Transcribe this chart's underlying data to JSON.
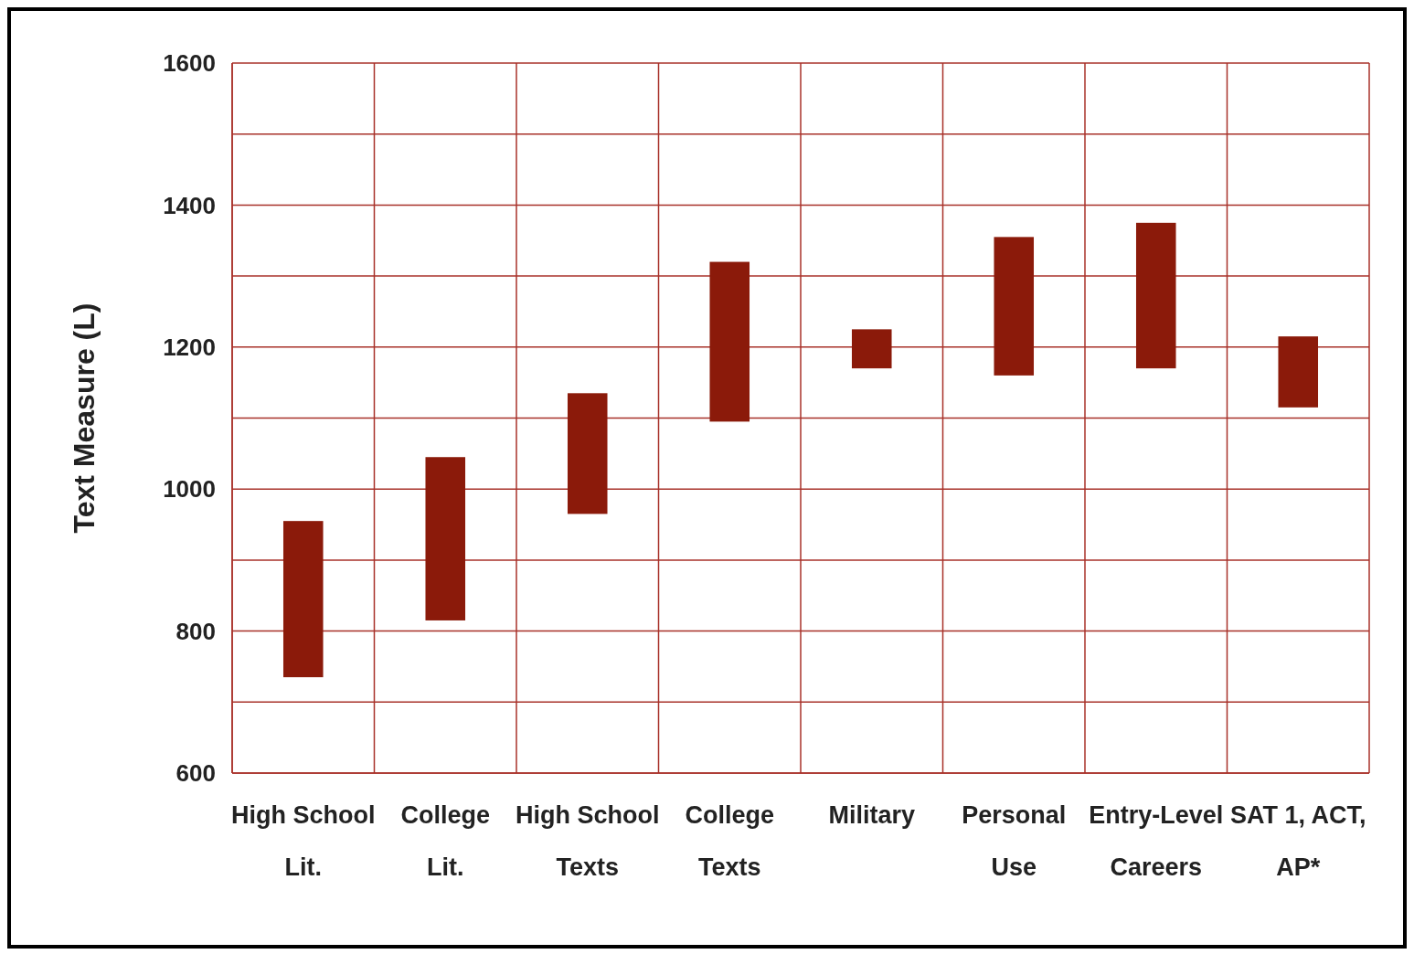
{
  "chart_data": {
    "type": "bar",
    "ylabel": "Text Measure (L)",
    "categories": [
      "High School Lit.",
      "College Lit.",
      "High School Texts",
      "College Texts",
      "Military",
      "Personal Use",
      "Entry-Level Careers",
      "SAT 1, ACT, AP*"
    ],
    "base": [
      735,
      815,
      965,
      1095,
      1170,
      1160,
      1170,
      1115
    ],
    "values": [
      220,
      230,
      170,
      225,
      55,
      195,
      205,
      100
    ],
    "color": "#8b1a0a",
    "ylim": [
      600,
      1600
    ],
    "yticks": [
      600,
      800,
      1000,
      1200,
      1400,
      1600
    ],
    "grid": true
  }
}
